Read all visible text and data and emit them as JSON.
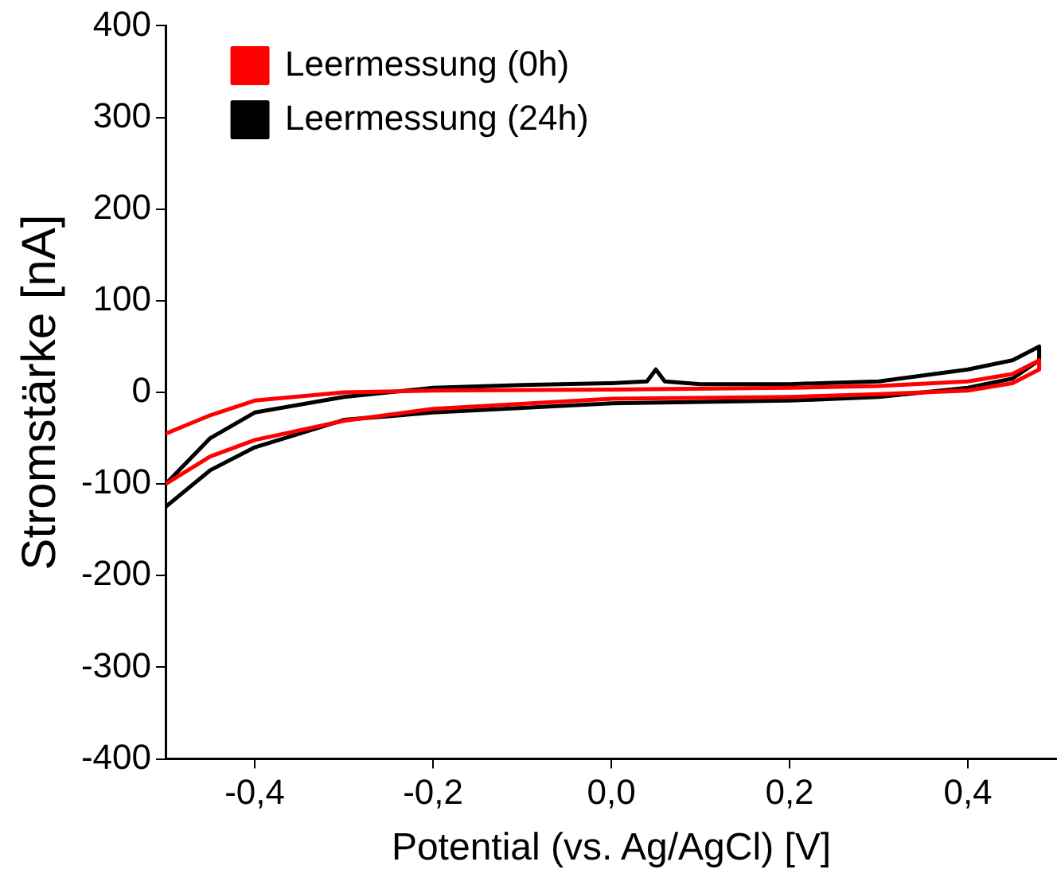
{
  "chart_data": {
    "type": "line",
    "xlabel": "Potential (vs. Ag/AgCl) [V]",
    "ylabel": "Stromstärke [nA]",
    "xlim": [
      -0.5,
      0.5
    ],
    "ylim": [
      -400,
      400
    ],
    "xticks": [
      {
        "value": -0.4,
        "label": "-0,4"
      },
      {
        "value": -0.2,
        "label": "-0,2"
      },
      {
        "value": 0,
        "label": "0,0"
      },
      {
        "value": 0.2,
        "label": "0,2"
      },
      {
        "value": 0.4,
        "label": "0,4"
      }
    ],
    "yticks": [
      -400,
      -300,
      -200,
      -100,
      0,
      100,
      200,
      300,
      400
    ],
    "grid": false,
    "legend": "top left",
    "marker": "none",
    "line_style": "solid",
    "series": [
      {
        "name": "Leermessung (0h)",
        "color": "#ff0000",
        "x": [
          -0.5,
          -0.45,
          -0.4,
          -0.3,
          -0.2,
          0,
          0.2,
          0.3,
          0.4,
          0.45,
          0.48,
          0.48,
          0.45,
          0.4,
          0.3,
          0.2,
          0,
          -0.2,
          -0.3,
          -0.4,
          -0.45,
          -0.5
        ],
        "values": [
          -45,
          -25,
          -9,
          0,
          2,
          3,
          5,
          7,
          12,
          20,
          35,
          25,
          10,
          2,
          -2,
          -5,
          -7,
          -18,
          -31,
          -52,
          -70,
          -100
        ]
      },
      {
        "name": "Leermessung (24h)",
        "color": "#000000",
        "x": [
          -0.5,
          -0.45,
          -0.4,
          -0.3,
          -0.2,
          -0.1,
          0,
          0.04,
          0.05,
          0.06,
          0.1,
          0.2,
          0.3,
          0.4,
          0.45,
          0.48,
          0.48,
          0.45,
          0.4,
          0.3,
          0.2,
          0,
          -0.2,
          -0.3,
          -0.4,
          -0.45,
          -0.5
        ],
        "values": [
          -100,
          -50,
          -22,
          -5,
          5,
          8,
          10,
          12,
          25,
          12,
          9,
          9,
          12,
          25,
          35,
          50,
          35,
          15,
          5,
          -5,
          -9,
          -12,
          -22,
          -30,
          -60,
          -85,
          -125
        ]
      }
    ]
  }
}
